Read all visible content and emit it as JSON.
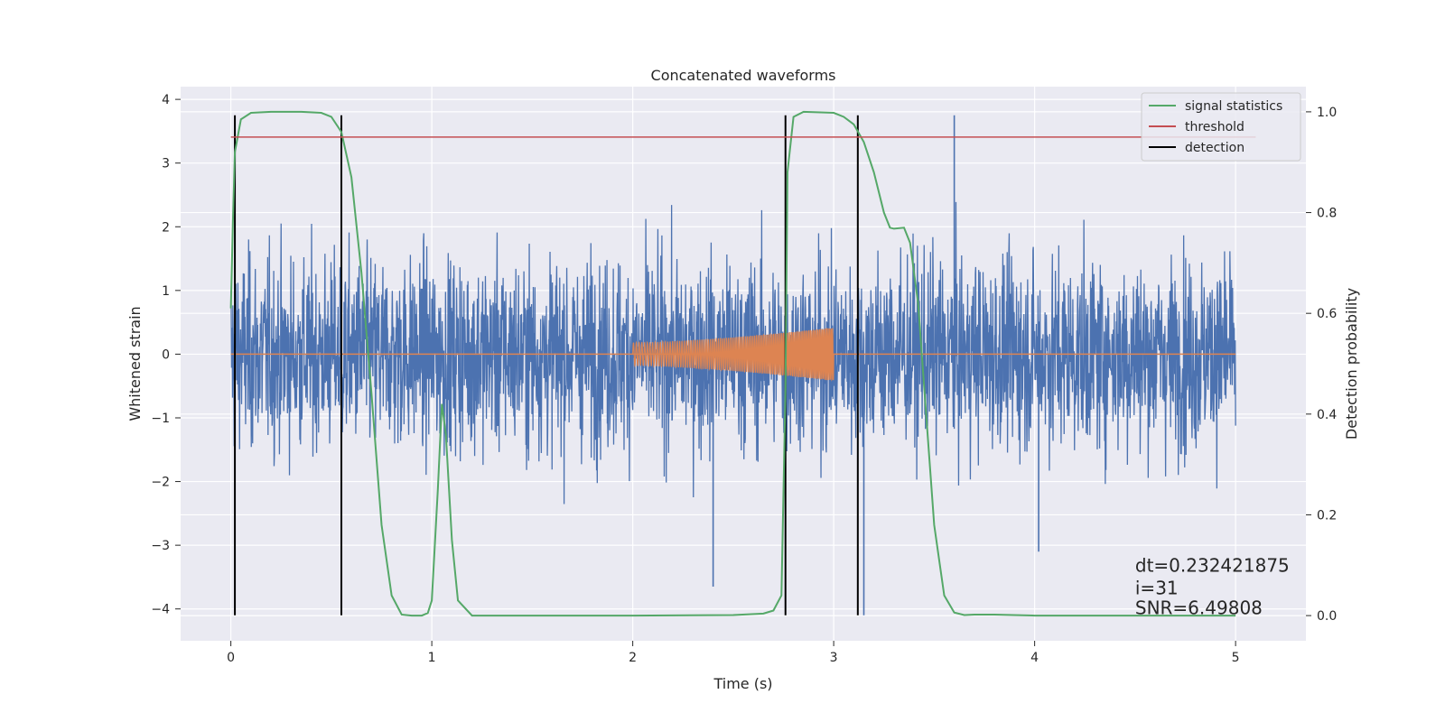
{
  "chart_data": {
    "type": "line",
    "title": "Concatenated waveforms",
    "xlabel": "Time (s)",
    "ylabel": "Whitened strain",
    "ylabel_right": "Detection probability",
    "xlim": [
      -0.25,
      5.35
    ],
    "ylim": [
      -4.5,
      4.2
    ],
    "ylim_right": [
      -0.05,
      1.05
    ],
    "x_ticks": [
      0,
      1,
      2,
      3,
      4,
      5
    ],
    "x_tick_labels": [
      "0",
      "1",
      "2",
      "3",
      "4",
      "5"
    ],
    "y_ticks": [
      4,
      3,
      2,
      1,
      0,
      -1,
      -2,
      -3,
      -4
    ],
    "y_tick_labels": [
      "4",
      "3",
      "2",
      "1",
      "0",
      "−1",
      "−2",
      "−3",
      "−4"
    ],
    "y2_ticks": [
      1.0,
      0.8,
      0.6,
      0.4,
      0.2,
      0.0
    ],
    "y2_tick_labels": [
      "1.0",
      "0.8",
      "0.6",
      "0.4",
      "0.2",
      "0.0"
    ],
    "grid": true,
    "legend_position": "top-right",
    "colors": {
      "strain": "#4c72b0",
      "template": "#dd8452",
      "signal_statistics": "#55a868",
      "threshold": "#c44e52",
      "detection": "#000000",
      "background": "#eaeaf2",
      "grid": "#ffffff"
    },
    "series": [
      {
        "name": "whitened strain (noise)",
        "axis": "left",
        "x_range": [
          0,
          5
        ],
        "approx_amplitude": 2.7,
        "notable_spikes": [
          {
            "x": 3.6,
            "y": 3.75
          },
          {
            "x": 2.4,
            "y": -3.65
          },
          {
            "x": 3.15,
            "y": -4.1
          },
          {
            "x": 4.02,
            "y": -3.1
          }
        ]
      },
      {
        "name": "injected waveform",
        "axis": "left",
        "x_range": [
          2.0,
          3.0
        ],
        "amplitude_start": 0.18,
        "amplitude_end": 0.42
      },
      {
        "name": "signal statistics",
        "axis": "right",
        "points": [
          [
            0.0,
            0.61
          ],
          [
            0.01,
            0.78
          ],
          [
            0.02,
            0.92
          ],
          [
            0.05,
            0.985
          ],
          [
            0.1,
            0.998
          ],
          [
            0.2,
            1.0
          ],
          [
            0.35,
            1.0
          ],
          [
            0.45,
            0.998
          ],
          [
            0.5,
            0.99
          ],
          [
            0.55,
            0.96
          ],
          [
            0.6,
            0.87
          ],
          [
            0.65,
            0.68
          ],
          [
            0.7,
            0.44
          ],
          [
            0.75,
            0.18
          ],
          [
            0.8,
            0.04
          ],
          [
            0.85,
            0.002
          ],
          [
            0.9,
            0.0
          ],
          [
            0.95,
            0.0
          ],
          [
            0.98,
            0.005
          ],
          [
            1.0,
            0.03
          ],
          [
            1.03,
            0.25
          ],
          [
            1.05,
            0.42
          ],
          [
            1.07,
            0.36
          ],
          [
            1.1,
            0.15
          ],
          [
            1.13,
            0.03
          ],
          [
            1.2,
            0.0
          ],
          [
            1.5,
            0.0
          ],
          [
            2.0,
            0.0
          ],
          [
            2.5,
            0.001
          ],
          [
            2.65,
            0.004
          ],
          [
            2.7,
            0.01
          ],
          [
            2.74,
            0.04
          ],
          [
            2.76,
            0.45
          ],
          [
            2.77,
            0.88
          ],
          [
            2.8,
            0.99
          ],
          [
            2.85,
            1.0
          ],
          [
            3.0,
            0.998
          ],
          [
            3.05,
            0.99
          ],
          [
            3.1,
            0.975
          ],
          [
            3.15,
            0.94
          ],
          [
            3.2,
            0.88
          ],
          [
            3.25,
            0.8
          ],
          [
            3.28,
            0.77
          ],
          [
            3.3,
            0.768
          ],
          [
            3.35,
            0.77
          ],
          [
            3.38,
            0.74
          ],
          [
            3.42,
            0.62
          ],
          [
            3.46,
            0.4
          ],
          [
            3.5,
            0.18
          ],
          [
            3.55,
            0.04
          ],
          [
            3.6,
            0.006
          ],
          [
            3.65,
            0.001
          ],
          [
            3.7,
            0.002
          ],
          [
            3.8,
            0.002
          ],
          [
            4.0,
            0.0
          ],
          [
            4.5,
            0.0
          ],
          [
            5.0,
            0.0
          ]
        ]
      },
      {
        "name": "threshold",
        "axis": "right",
        "value": 0.95,
        "x_range": [
          0,
          5.1
        ]
      },
      {
        "name": "detection",
        "axis": "left",
        "x": [
          0.02,
          0.55,
          2.76,
          3.12
        ],
        "y_range": [
          -4.1,
          3.75
        ]
      }
    ],
    "legend": [
      {
        "label": "signal statistics",
        "color": "#55a868"
      },
      {
        "label": "threshold",
        "color": "#c44e52"
      },
      {
        "label": "detection",
        "color": "#000000"
      }
    ],
    "annotations": [
      {
        "text": "dt=0.232421875",
        "x": 4.5,
        "y": 0.1
      },
      {
        "text": " i=31",
        "x": 4.5,
        "y": 0.055
      },
      {
        "text": "SNR=6.49808",
        "x": 4.5,
        "y": 0.015
      }
    ]
  }
}
